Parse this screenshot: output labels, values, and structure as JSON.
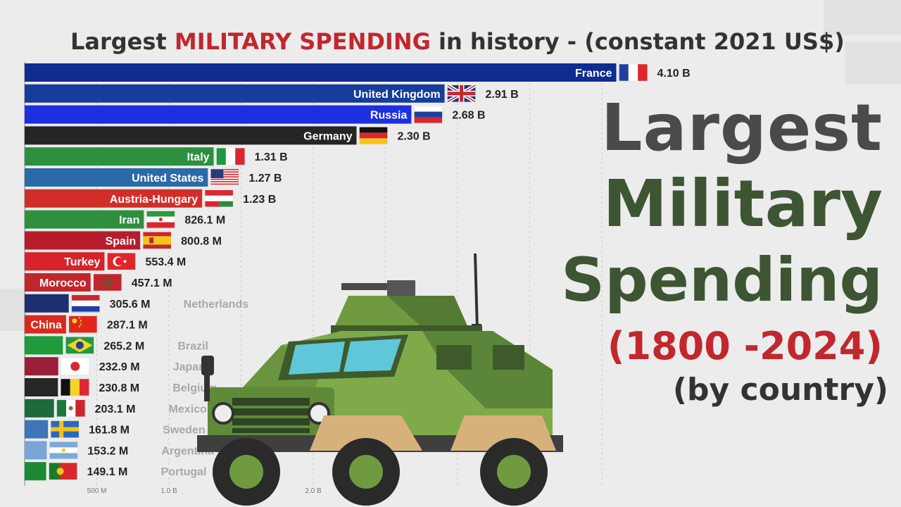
{
  "title": {
    "part1": "Largest ",
    "highlight": "MILITARY SPENDING",
    "part2": " in history  - (constant 2021 US$)"
  },
  "overlay": {
    "line1": "Largest",
    "line2": "Military",
    "line3": "Spending",
    "line4": "(1800 -2024)",
    "line5": "(by country)"
  },
  "vehicle_icon": "military-armored-truck",
  "chart_data": {
    "type": "bar",
    "orientation": "horizontal",
    "categories": [
      "France",
      "United Kingdom",
      "Russia",
      "Germany",
      "Italy",
      "United States",
      "Austria-Hungary",
      "Iran",
      "Spain",
      "Turkey",
      "Morocco",
      "Netherlands",
      "China",
      "Brazil",
      "Japan",
      "Belgium",
      "Mexico",
      "Sweden",
      "Argentina",
      "Portugal"
    ],
    "values": [
      4.1,
      2.91,
      2.68,
      2.3,
      1.31,
      1.27,
      1.23,
      0.8261,
      0.8008,
      0.5534,
      0.4571,
      0.3056,
      0.2871,
      0.2652,
      0.2329,
      0.2308,
      0.2031,
      0.1618,
      0.1532,
      0.1491
    ],
    "value_labels": [
      "4.10 B",
      "2.91 B",
      "2.68 B",
      "2.30 B",
      "1.31 B",
      "1.27 B",
      "1.23 B",
      "826.1 M",
      "800.8 M",
      "553.4 M",
      "457.1 M",
      "305.6 M",
      "287.1 M",
      "265.2 M",
      "232.9 M",
      "230.8 M",
      "203.1 M",
      "161.8 M",
      "153.2 M",
      "149.1 M"
    ],
    "units": "billion US$ (constant 2021)",
    "x_ticks": [
      {
        "value": 0.5,
        "label": "500 M"
      },
      {
        "value": 1.0,
        "label": "1.0 B"
      },
      {
        "value": 1.5,
        "label": ""
      },
      {
        "value": 2.0,
        "label": "2.0 B"
      },
      {
        "value": 2.5,
        "label": ""
      },
      {
        "value": 3.0,
        "label": ""
      },
      {
        "value": 3.5,
        "label": ""
      },
      {
        "value": 4.0,
        "label": ""
      }
    ],
    "xlim": [
      0,
      4.1
    ],
    "bar_colors": [
      "#0f2d8f",
      "#163c9c",
      "#1d2fe0",
      "#252525",
      "#2e8f3e",
      "#2a6aa6",
      "#d12e2a",
      "#2e8f3e",
      "#b51d2a",
      "#d6232a",
      "#c0272d",
      "#1c2f6e",
      "#d82a1c",
      "#1f9a3d",
      "#9a1d3a",
      "#262626",
      "#1d6a3a",
      "#3e74b8",
      "#7aa6d6",
      "#1c8a33"
    ],
    "flags": [
      "france",
      "united-kingdom",
      "russia",
      "germany",
      "italy",
      "united-states",
      "austria-hungary",
      "iran",
      "spain",
      "turkey",
      "morocco",
      "netherlands",
      "china",
      "brazil",
      "japan",
      "belgium",
      "mexico",
      "sweden",
      "argentina",
      "portugal"
    ],
    "grid": true,
    "legend": "none"
  }
}
